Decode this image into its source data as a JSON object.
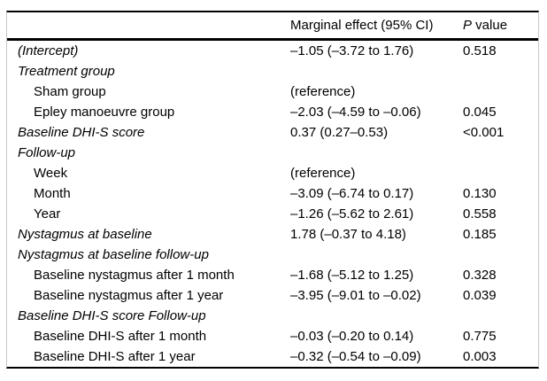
{
  "colors": {
    "rule": "#000000",
    "frame_border": "#c9c9c9",
    "text": "#000000",
    "background": "#ffffff"
  },
  "table": {
    "header": {
      "effect_label": "Marginal effect (95% CI)",
      "p_label_italic": "P",
      "p_label_rest": " value"
    },
    "rows": [
      {
        "label": "(Intercept)",
        "effect": "–1.05 (–3.72 to 1.76)",
        "p": "0.518"
      },
      {
        "label": "Treatment group",
        "effect": "",
        "p": ""
      },
      {
        "label": "Sham group",
        "effect": "(reference)",
        "p": ""
      },
      {
        "label": "Epley manoeuvre group",
        "effect": "–2.03 (–4.59 to –0.06)",
        "p": "0.045"
      },
      {
        "label": "Baseline DHI-S score",
        "effect": "0.37 (0.27–0.53)",
        "p": "<0.001"
      },
      {
        "label": "Follow-up",
        "effect": "",
        "p": ""
      },
      {
        "label": "Week",
        "effect": "(reference)",
        "p": ""
      },
      {
        "label": "Month",
        "effect": "–3.09 (–6.74 to 0.17)",
        "p": "0.130"
      },
      {
        "label": "Year",
        "effect": "–1.26 (–5.62 to 2.61)",
        "p": "0.558"
      },
      {
        "label": "Nystagmus at baseline",
        "effect": "1.78 (–0.37 to 4.18)",
        "p": "0.185"
      },
      {
        "label": "Nystagmus at baseline follow-up",
        "effect": "",
        "p": ""
      },
      {
        "label": "Baseline nystagmus after 1 month",
        "effect": "–1.68 (–5.12 to 1.25)",
        "p": "0.328"
      },
      {
        "label": "Baseline nystagmus after 1 year",
        "effect": "–3.95 (–9.01 to –0.02)",
        "p": "0.039"
      },
      {
        "label": "Baseline DHI-S score Follow-up",
        "effect": "",
        "p": ""
      },
      {
        "label": "Baseline DHI-S after 1 month",
        "effect": "–0.03 (–0.20 to 0.14)",
        "p": "0.775"
      },
      {
        "label": "Baseline DHI-S after 1 year",
        "effect": "–0.32 (–0.54 to –0.09)",
        "p": "0.003"
      }
    ]
  }
}
